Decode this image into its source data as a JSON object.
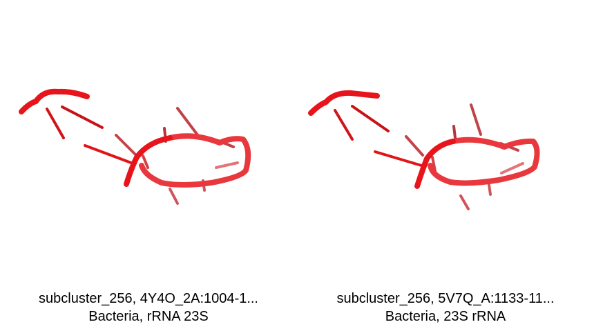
{
  "panels": [
    {
      "title": "subcluster_256, 4Y4O_2A:1004-1...",
      "subtitle": "Bacteria, rRNA 23S",
      "color": "#e8141c"
    },
    {
      "title": "subcluster_256, 5V7Q_A:1133-11...",
      "subtitle": "Bacteria, 23S rRNA",
      "color": "#e8141c"
    }
  ]
}
